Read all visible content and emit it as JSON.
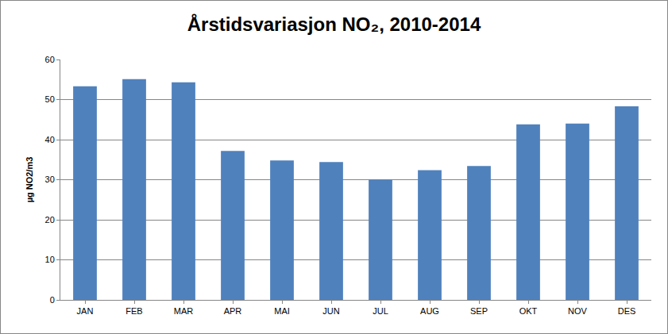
{
  "chart_data": {
    "type": "bar",
    "title": "Årstidsvariasjon NO₂, 2010-2014",
    "y_label": "µg NO2/m3",
    "categories": [
      "JAN",
      "FEB",
      "MAR",
      "APR",
      "MAI",
      "JUN",
      "JUL",
      "AUG",
      "SEP",
      "OKT",
      "NOV",
      "DES"
    ],
    "values": [
      53.3,
      55.1,
      54.3,
      37.2,
      34.8,
      34.4,
      30.0,
      32.4,
      33.4,
      43.8,
      44.0,
      48.3
    ],
    "color": "#4f81bd",
    "ylim": [
      0,
      60
    ],
    "yticks": [
      0,
      10,
      20,
      30,
      40,
      50,
      60
    ],
    "grid": true
  }
}
